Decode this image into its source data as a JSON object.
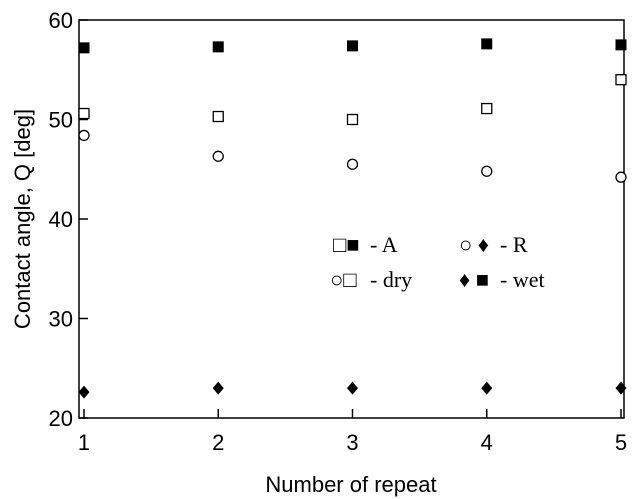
{
  "chart_data": {
    "type": "scatter",
    "xlabel": "Number of repeat",
    "ylabel": "Contact angle, Q [deg]",
    "xlim": [
      1,
      5
    ],
    "ylim": [
      20,
      60
    ],
    "xticks": [
      "1",
      "2",
      "3",
      "4",
      "5"
    ],
    "yticks": [
      "20",
      "30",
      "40",
      "50",
      "60"
    ],
    "grid": false,
    "legend_position": "center-right",
    "legend": {
      "row1": {
        "marks": "□■",
        "label": "- A",
        "marks2": "○ ♦",
        "label2": "- R"
      },
      "row2": {
        "marks": "○□",
        "label": "- dry",
        "marks2": "♦ ■",
        "label2": "- wet"
      }
    },
    "series": [
      {
        "marker": "square-open",
        "x": [
          1,
          2,
          3,
          4,
          5
        ],
        "y": [
          50.6,
          50.3,
          50.0,
          51.1,
          54.0
        ]
      },
      {
        "marker": "square-filled",
        "x": [
          1,
          2,
          3,
          4,
          5
        ],
        "y": [
          57.2,
          57.3,
          57.4,
          57.6,
          57.5
        ]
      },
      {
        "marker": "circle-open",
        "x": [
          1,
          2,
          3,
          4,
          5
        ],
        "y": [
          48.4,
          46.3,
          45.5,
          44.8,
          44.2
        ]
      },
      {
        "marker": "diamond-filled",
        "x": [
          1,
          2,
          3,
          4,
          5
        ],
        "y": [
          22.6,
          23.0,
          23.0,
          23.0,
          23.0
        ]
      }
    ]
  }
}
